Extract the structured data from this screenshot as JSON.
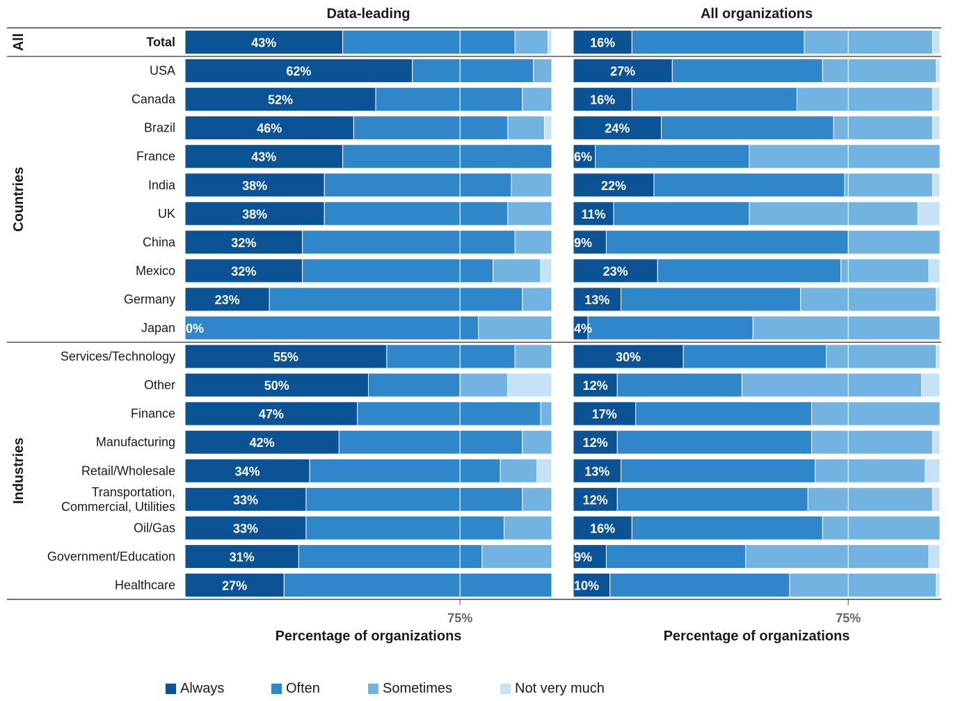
{
  "chart_data": {
    "type": "bar",
    "orientation": "horizontal",
    "stacked": true,
    "xlabel": "Percentage of organizations",
    "xtick": "75%",
    "xlim": [
      0,
      100
    ],
    "legend_position": "bottom",
    "categories": [
      "Always",
      "Often",
      "Sometimes",
      "Not very much"
    ],
    "colors": [
      "#0b5394",
      "#2f86c8",
      "#72b3e2",
      "#c5e2f6"
    ],
    "groups": [
      {
        "label": "All",
        "rows": [
          "Total"
        ]
      },
      {
        "label": "Countries",
        "rows": [
          "USA",
          "Canada",
          "Brazil",
          "France",
          "India",
          "UK",
          "China",
          "Mexico",
          "Germany",
          "Japan"
        ]
      },
      {
        "label": "Industries",
        "rows": [
          "Services/Technology",
          "Other",
          "Finance",
          "Manufacturing",
          "Retail/Wholesale",
          "Transportation,\nCommercial, Utilities",
          "Oil/Gas",
          "Government/Education",
          "Healthcare"
        ]
      }
    ],
    "panels": [
      {
        "title": "Data-leading",
        "data_labels": [
          "43%",
          "62%",
          "52%",
          "46%",
          "43%",
          "38%",
          "38%",
          "32%",
          "32%",
          "23%",
          "0%",
          "55%",
          "50%",
          "47%",
          "42%",
          "34%",
          "33%",
          "33%",
          "31%",
          "27%"
        ],
        "values": [
          [
            43,
            47,
            9,
            1
          ],
          [
            62,
            33,
            5,
            0
          ],
          [
            52,
            40,
            8,
            0
          ],
          [
            46,
            42,
            10,
            2
          ],
          [
            43,
            57,
            0,
            0
          ],
          [
            38,
            51,
            11,
            0
          ],
          [
            38,
            50,
            12,
            0
          ],
          [
            32,
            58,
            10,
            0
          ],
          [
            32,
            52,
            13,
            3
          ],
          [
            23,
            69,
            8,
            0
          ],
          [
            0,
            80,
            20,
            0
          ],
          [
            55,
            35,
            10,
            0
          ],
          [
            50,
            25,
            13,
            12
          ],
          [
            47,
            50,
            3,
            0
          ],
          [
            42,
            50,
            8,
            0
          ],
          [
            34,
            52,
            10,
            4
          ],
          [
            33,
            59,
            8,
            0
          ],
          [
            33,
            54,
            13,
            0
          ],
          [
            31,
            50,
            19,
            0
          ],
          [
            27,
            73,
            0,
            0
          ]
        ]
      },
      {
        "title": "All organizations",
        "data_labels": [
          "16%",
          "27%",
          "16%",
          "24%",
          "6%",
          "22%",
          "11%",
          "9%",
          "23%",
          "13%",
          "4%",
          "30%",
          "12%",
          "17%",
          "12%",
          "13%",
          "12%",
          "16%",
          "9%",
          "10%"
        ],
        "values": [
          [
            16,
            47,
            35,
            2
          ],
          [
            27,
            41,
            31,
            1
          ],
          [
            16,
            45,
            37,
            2
          ],
          [
            24,
            47,
            27,
            2
          ],
          [
            6,
            42,
            52,
            0
          ],
          [
            22,
            52,
            24,
            2
          ],
          [
            11,
            37,
            46,
            6
          ],
          [
            9,
            66,
            25,
            0
          ],
          [
            23,
            50,
            24,
            3
          ],
          [
            13,
            49,
            37,
            1
          ],
          [
            4,
            45,
            51,
            0
          ],
          [
            30,
            39,
            30,
            1
          ],
          [
            12,
            34,
            49,
            5
          ],
          [
            17,
            48,
            35,
            0
          ],
          [
            12,
            53,
            33,
            2
          ],
          [
            13,
            53,
            30,
            4
          ],
          [
            12,
            52,
            34,
            2
          ],
          [
            16,
            52,
            32,
            0
          ],
          [
            9,
            38,
            50,
            3
          ],
          [
            10,
            49,
            40,
            1
          ]
        ]
      }
    ]
  }
}
